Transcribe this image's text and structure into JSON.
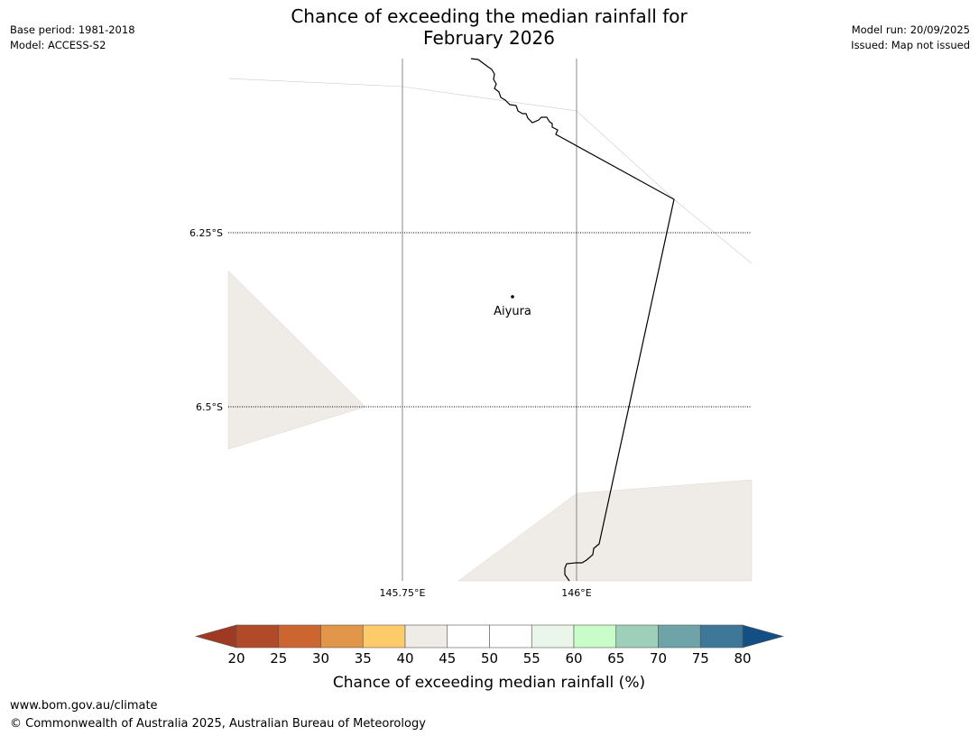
{
  "header": {
    "title_line1": "Chance of exceeding the median rainfall for",
    "title_line2": "February 2026",
    "base_period": "Base period: 1981-2018",
    "model": "Model: ACCESS-S2",
    "model_run": "Model run: 20/09/2025",
    "issued": "Issued: Map not issued"
  },
  "map": {
    "lat_labels": [
      "6.25°S",
      "6.5°S"
    ],
    "lon_labels": [
      "145.75°E",
      "146°E"
    ],
    "place": {
      "name": "Aiyura"
    }
  },
  "colorbar": {
    "label": "Chance of exceeding median rainfall (%)",
    "ticks": [
      "20",
      "25",
      "30",
      "35",
      "40",
      "45",
      "50",
      "55",
      "60",
      "65",
      "70",
      "75",
      "80"
    ],
    "under_color": "#9e3a24",
    "over_color": "#134f85",
    "bin_colors": [
      "#b04a28",
      "#cd6530",
      "#e1964a",
      "#fdcb6a",
      "#efebe6",
      "#ffffff",
      "#ffffff",
      "#eaf6ea",
      "#c8fcc9",
      "#9ecfb9",
      "#6ea3a7",
      "#3f7799"
    ]
  },
  "footer": {
    "url": "www.bom.gov.au/climate",
    "copyright": "© Commonwealth of Australia 2025, Australian Bureau of Meteorology"
  }
}
